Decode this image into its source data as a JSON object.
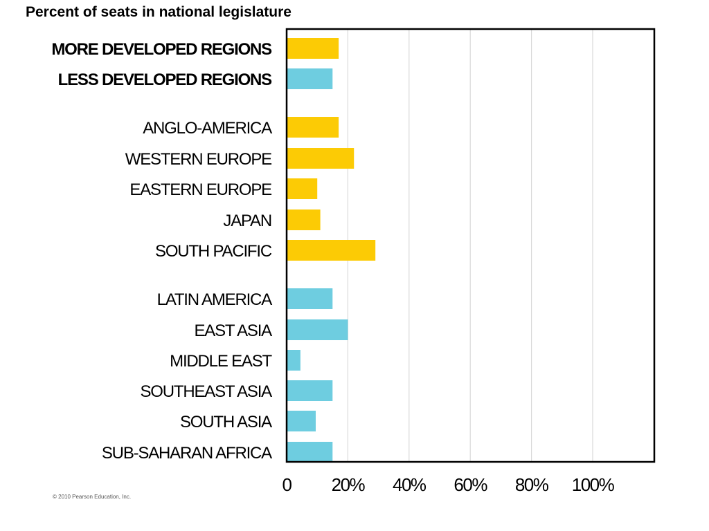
{
  "page": {
    "title": "Percent of seats in national legislature",
    "copyright": "© 2010 Pearson Education, Inc."
  },
  "chart_data": {
    "type": "bar",
    "orientation": "horizontal",
    "title": "Percent of seats in national legislature",
    "xlabel": "",
    "ylabel": "",
    "xlim": [
      0,
      120
    ],
    "x_ticks": [
      0,
      20,
      40,
      60,
      80,
      100
    ],
    "x_tick_labels": [
      "0",
      "20%",
      "40%",
      "60%",
      "80%",
      "100%"
    ],
    "grid": "vertical",
    "colors": {
      "more_developed": "#FCCB05",
      "less_developed": "#6ECDE0",
      "grid": "#d9d9d9",
      "frame": "#000000"
    },
    "categories": [
      "MORE DEVELOPED REGIONS",
      "LESS DEVELOPED REGIONS",
      "ANGLO-AMERICA",
      "WESTERN EUROPE",
      "EASTERN EUROPE",
      "JAPAN",
      "SOUTH PACIFIC",
      "LATIN AMERICA",
      "EAST ASIA",
      "MIDDLE EAST",
      "SOUTHEAST ASIA",
      "SOUTH ASIA",
      "SUB-SAHARAN AFRICA"
    ],
    "values": [
      17,
      15,
      17,
      22,
      10,
      11,
      29,
      15,
      20,
      4.5,
      15,
      9.5,
      15
    ],
    "groups": [
      "more",
      "less",
      "more",
      "more",
      "more",
      "more",
      "more",
      "less",
      "less",
      "less",
      "less",
      "less",
      "less"
    ],
    "bold_categories": [
      "MORE DEVELOPED REGIONS",
      "LESS DEVELOPED REGIONS"
    ]
  }
}
